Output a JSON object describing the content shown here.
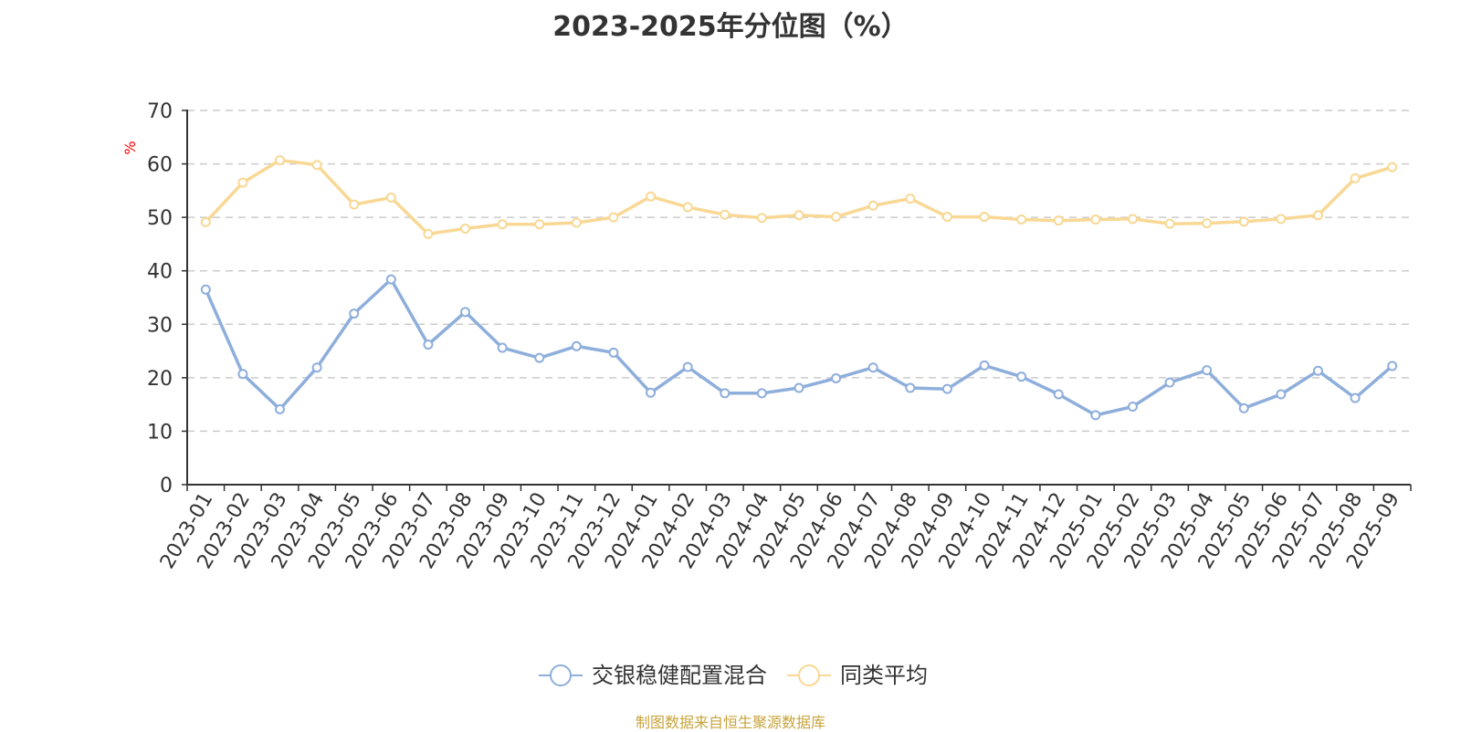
{
  "title": "2023-2025年分位图（%）",
  "source": "制图数据来自恒生聚源数据库",
  "chart_data": {
    "type": "line",
    "title": "2023-2025年分位图（%）",
    "ylabel": "%",
    "ylim": [
      0,
      70
    ],
    "yticks": [
      0,
      10,
      20,
      30,
      40,
      50,
      60,
      70
    ],
    "grid": true,
    "legend_position": "bottom-center",
    "categories": [
      "2023-01",
      "2023-02",
      "2023-03",
      "2023-04",
      "2023-05",
      "2023-06",
      "2023-07",
      "2023-08",
      "2023-09",
      "2023-10",
      "2023-11",
      "2023-12",
      "2024-01",
      "2024-02",
      "2024-03",
      "2024-04",
      "2024-05",
      "2024-06",
      "2024-07",
      "2024-08",
      "2024-09",
      "2024-10",
      "2024-11",
      "2024-12",
      "2025-01",
      "2025-02",
      "2025-03",
      "2025-04",
      "2025-05",
      "2025-06",
      "2025-07",
      "2025-08",
      "2025-09"
    ],
    "series": [
      {
        "name": "交银稳健配置混合",
        "color": "#8eaedb",
        "values": [
          36.5,
          20.7,
          14.1,
          21.9,
          32.0,
          38.4,
          26.2,
          32.3,
          25.6,
          23.7,
          25.9,
          24.7,
          17.2,
          22.0,
          17.1,
          17.1,
          18.1,
          19.9,
          21.9,
          18.1,
          17.9,
          22.3,
          20.2,
          16.9,
          13.0,
          14.6,
          19.1,
          21.4,
          14.3,
          16.9,
          21.3,
          16.2,
          22.2
        ]
      },
      {
        "name": "同类平均",
        "color": "#f8d894",
        "values": [
          49.1,
          56.5,
          60.7,
          59.8,
          52.4,
          53.7,
          46.9,
          47.9,
          48.7,
          48.7,
          49.0,
          50.0,
          53.9,
          51.9,
          50.5,
          49.9,
          50.4,
          50.1,
          52.2,
          53.5,
          50.1,
          50.1,
          49.6,
          49.4,
          49.6,
          49.7,
          48.8,
          48.9,
          49.2,
          49.7,
          50.4,
          57.3,
          59.4
        ]
      }
    ]
  }
}
